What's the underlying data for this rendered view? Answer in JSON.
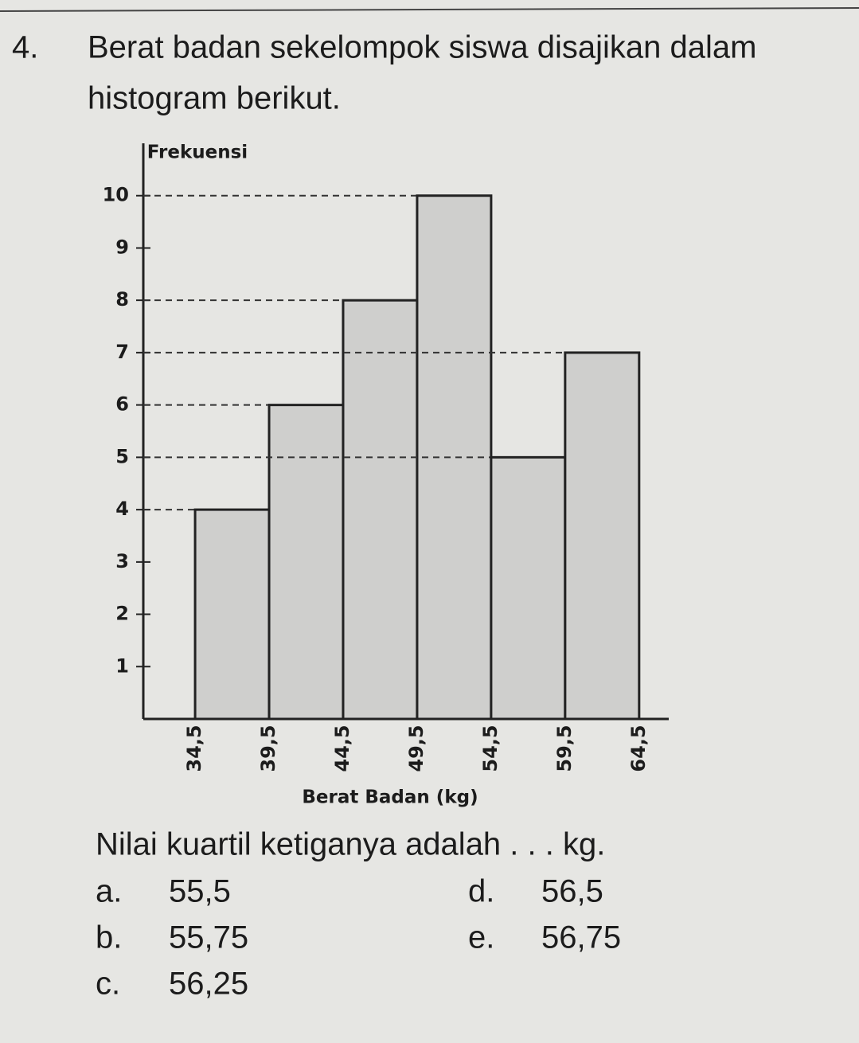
{
  "question": {
    "number": "4.",
    "text_lines": [
      "Berat badan sekelompok siswa disajikan dalam",
      "histogram berikut."
    ]
  },
  "chart_data": {
    "type": "histogram",
    "ylabel": "Frekuensi",
    "xlabel": "Berat Badan (kg)",
    "bins": [
      {
        "value": 34.5,
        "label": "34,5"
      },
      {
        "value": 39.5,
        "label": "39,5"
      },
      {
        "value": 44.5,
        "label": "44,5"
      },
      {
        "value": 49.5,
        "label": "49,5"
      },
      {
        "value": 54.5,
        "label": "54,5"
      },
      {
        "value": 59.5,
        "label": "59,5"
      },
      {
        "value": 64.5,
        "label": "64,5"
      }
    ],
    "counts": [
      4,
      6,
      8,
      10,
      5,
      7
    ],
    "color": "#cfcfcd",
    "xlim": [
      31,
      66.5
    ],
    "ylim": [
      0,
      11
    ],
    "yticks": [
      1,
      2,
      3,
      4,
      5,
      6,
      7,
      8,
      9,
      10
    ]
  },
  "prompt": "Nilai kuartil ketiganya adalah . . . kg.",
  "options": [
    {
      "letter": "a.",
      "text": "55,5"
    },
    {
      "letter": "b.",
      "text": "55,75"
    },
    {
      "letter": "c.",
      "text": "56,25"
    },
    {
      "letter": "d.",
      "text": "56,5"
    },
    {
      "letter": "e.",
      "text": "56,75"
    }
  ]
}
